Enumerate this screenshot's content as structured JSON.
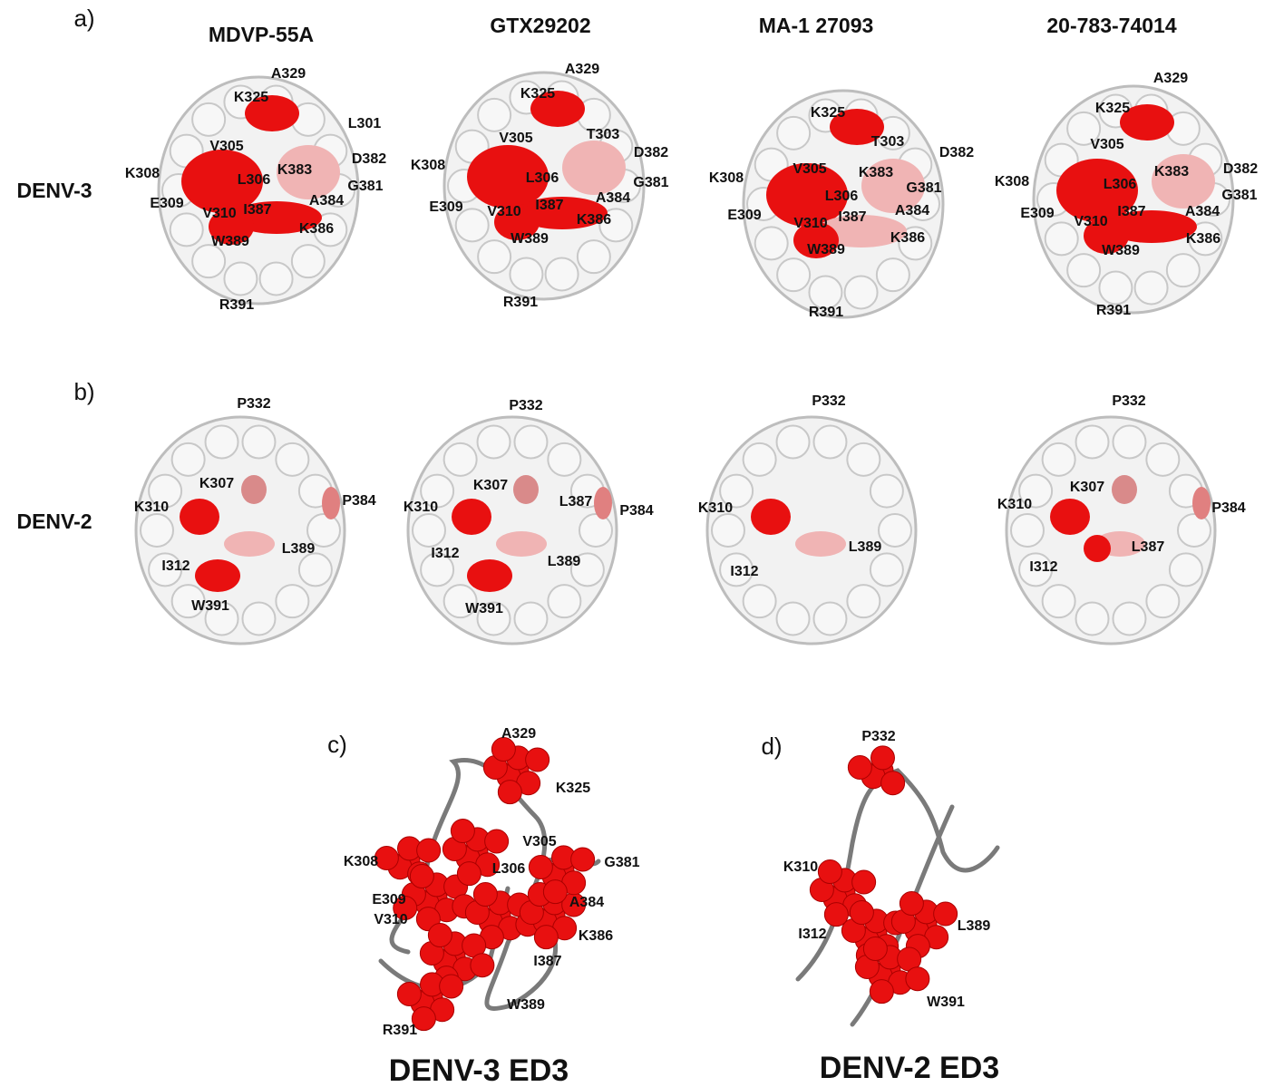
{
  "panel_a": {
    "label": "a)",
    "row_label": "DENV-3",
    "columns": [
      {
        "header": "MDVP-55A",
        "residues": [
          "A329",
          "K325",
          "L301",
          "V305",
          "D382",
          "K308",
          "L306",
          "K383",
          "G381",
          "E309",
          "A384",
          "V310",
          "I387",
          "K386",
          "W389",
          "R391"
        ]
      },
      {
        "header": "GTX29202",
        "residues": [
          "A329",
          "K325",
          "V305",
          "T303",
          "D382",
          "K308",
          "L306",
          "G381",
          "E309",
          "A384",
          "V310",
          "I387",
          "K386",
          "W389",
          "R391"
        ]
      },
      {
        "header": "MA-1 27093",
        "residues": [
          "K325",
          "T303",
          "D382",
          "V305",
          "K383",
          "K308",
          "L306",
          "G381",
          "E309",
          "A384",
          "V310",
          "I387",
          "K386",
          "W389",
          "R391"
        ]
      },
      {
        "header": "20-783-74014",
        "residues": [
          "A329",
          "K325",
          "V305",
          "D382",
          "K383",
          "K308",
          "L306",
          "G381",
          "E309",
          "A384",
          "V310",
          "I387",
          "K386",
          "W389",
          "R391"
        ]
      }
    ]
  },
  "panel_b": {
    "label": "b)",
    "row_label": "DENV-2",
    "columns": [
      {
        "residues": [
          "P332",
          "K307",
          "K310",
          "P384",
          "L389",
          "I312",
          "W391"
        ]
      },
      {
        "residues": [
          "P332",
          "K307",
          "L387",
          "K310",
          "P384",
          "I312",
          "L389",
          "W391"
        ]
      },
      {
        "residues": [
          "P332",
          "K310",
          "L389",
          "I312"
        ]
      },
      {
        "residues": [
          "P332",
          "K307",
          "K310",
          "P384",
          "L387",
          "I312"
        ]
      }
    ]
  },
  "panel_c": {
    "label": "c)",
    "title": "DENV-3 ED3",
    "residues": [
      "A329",
      "K325",
      "V305",
      "K308",
      "G381",
      "L306",
      "E309",
      "A384",
      "V310",
      "K386",
      "I387",
      "W389",
      "R391"
    ]
  },
  "panel_d": {
    "label": "d)",
    "title": "DENV-2 ED3",
    "residues": [
      "P332",
      "K310",
      "L389",
      "I312",
      "W391"
    ]
  }
}
